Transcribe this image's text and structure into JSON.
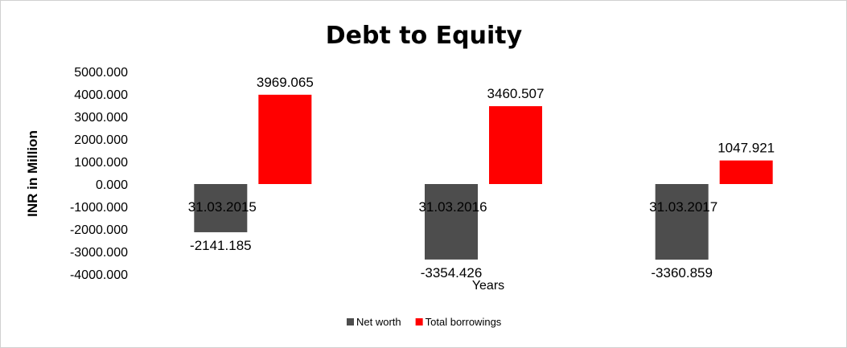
{
  "chart_data": {
    "type": "bar",
    "title": "Debt to Equity",
    "xlabel": "Years",
    "ylabel": "INR in Million",
    "categories": [
      "31.03.2015",
      "31.03.2016",
      "31.03.2017"
    ],
    "series": [
      {
        "name": "Net worth",
        "color": "#4d4d4d",
        "values": [
          -2141.185,
          -3354.426,
          -3360.859
        ],
        "labels": [
          "-2141.185",
          "-3354.426",
          "-3360.859"
        ]
      },
      {
        "name": "Total borrowings",
        "color": "#ff0000",
        "values": [
          3969.065,
          3460.507,
          1047.921
        ],
        "labels": [
          "3969.065",
          "3460.507",
          "1047.921"
        ]
      }
    ],
    "ylim": [
      -4000,
      5000
    ],
    "yticks": [
      5000,
      4000,
      3000,
      2000,
      1000,
      0,
      -1000,
      -2000,
      -3000,
      -4000
    ],
    "ytick_labels": [
      "5000.000",
      "4000.000",
      "3000.000",
      "2000.000",
      "1000.000",
      "0.000",
      "-1000.000",
      "-2000.000",
      "-3000.000",
      "-4000.000"
    ],
    "grid": false,
    "legend_position": "bottom"
  }
}
